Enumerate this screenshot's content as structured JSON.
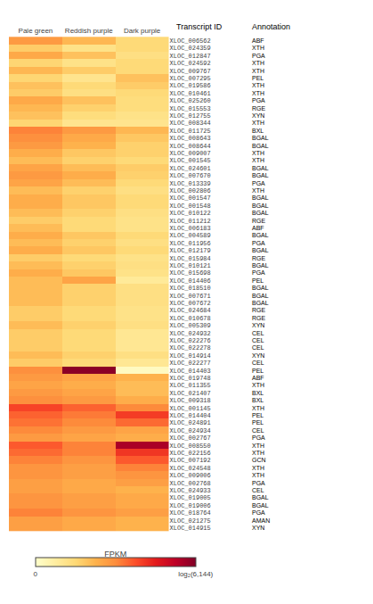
{
  "chart_data": {
    "type": "heatmap",
    "x": [
      "Pale green",
      "Reddish purple",
      "Dark purple"
    ],
    "y": [
      "XLOC_006562",
      "XLOC_024359",
      "XLOC_012847",
      "XLOC_024592",
      "XLOC_009767",
      "XLOC_007295",
      "XLOC_019586",
      "XLOC_010461",
      "XLOC_025260",
      "XLOC_015553",
      "XLOC_012755",
      "XLOC_008344",
      "XLOC_011725",
      "XLOC_008643",
      "XLOC_008644",
      "XLOC_009007",
      "XLOC_001545",
      "XLOC_024601",
      "XLOC_007670",
      "XLOC_013339",
      "XLOC_002806",
      "XLOC_001547",
      "XLOC_001548",
      "XLOC_010122",
      "XLOC_011212",
      "XLOC_006183",
      "XLOC_004589",
      "XLOC_011956",
      "XLOC_012179",
      "XLOC_015984",
      "XLOC_010121",
      "XLOC_015698",
      "XLOC_014406",
      "XLOC_018510",
      "XLOC_007671",
      "XLOC_007672",
      "XLOC_024684",
      "XLOC_010678",
      "XLOC_005309",
      "XLOC_024932",
      "XLOC_022276",
      "XLOC_022278",
      "XLOC_014914",
      "XLOC_022277",
      "XLOC_014403",
      "XLOC_019748",
      "XLOC_011355",
      "XLOC_021407",
      "XLOC_009318",
      "XLOC_001145",
      "XLOC_014404",
      "XLOC_024891",
      "XLOC_024934",
      "XLOC_002767",
      "XLOC_008550",
      "XLOC_022156",
      "XLOC_007192",
      "XLOC_024548",
      "XLOC_009006",
      "XLOC_002768",
      "XLOC_024933",
      "XLOC_019005",
      "XLOC_019006",
      "XLOC_018764",
      "XLOC_021275",
      "XLOC_014915"
    ],
    "annotations": [
      "ABF",
      "XTH",
      "PGA",
      "XTH",
      "XTH",
      "PEL",
      "XTH",
      "XTH",
      "PGA",
      "RGE",
      "XYN",
      "XTH",
      "BXL",
      "BGAL",
      "BGAL",
      "XTH",
      "XTH",
      "BGAL",
      "BGAL",
      "PGA",
      "XTH",
      "BGAL",
      "BGAL",
      "BGAL",
      "RGE",
      "ABF",
      "BGAL",
      "PGA",
      "BGAL",
      "RGE",
      "BGAL",
      "PGA",
      "PEL",
      "BGAL",
      "BGAL",
      "BGAL",
      "RGE",
      "RGE",
      "XYN",
      "CEL",
      "CEL",
      "CEL",
      "XYN",
      "CEL",
      "PEL",
      "ABF",
      "XTH",
      "BXL",
      "BXL",
      "XTH",
      "PEL",
      "PEL",
      "CEL",
      "PGA",
      "XTH",
      "XTH",
      "GCN",
      "XTH",
      "XTH",
      "PGA",
      "CEL",
      "BGAL",
      "BGAL",
      "PGA",
      "AMAN",
      "XYN"
    ],
    "ylabel": "Transcript ID",
    "annotation_header": "Annotation",
    "values": [
      [
        2.8,
        2.2,
        1.5
      ],
      [
        1.8,
        1.2,
        1.5
      ],
      [
        2.5,
        2.0,
        1.3
      ],
      [
        1.6,
        1.2,
        1.5
      ],
      [
        2.2,
        1.8,
        1.5
      ],
      [
        1.6,
        1.1,
        2.0
      ],
      [
        2.0,
        1.5,
        1.8
      ],
      [
        1.8,
        1.3,
        1.5
      ],
      [
        2.5,
        2.0,
        1.4
      ],
      [
        2.2,
        1.7,
        1.4
      ],
      [
        2.0,
        1.4,
        1.2
      ],
      [
        1.6,
        1.1,
        1.1
      ],
      [
        3.2,
        2.8,
        2.2
      ],
      [
        3.0,
        2.5,
        1.9
      ],
      [
        2.8,
        2.3,
        1.7
      ],
      [
        2.4,
        1.9,
        1.7
      ],
      [
        2.1,
        1.7,
        1.5
      ],
      [
        2.6,
        2.1,
        1.8
      ],
      [
        2.8,
        2.4,
        1.7
      ],
      [
        2.6,
        2.1,
        1.5
      ],
      [
        2.1,
        1.7,
        1.3
      ],
      [
        2.4,
        1.9,
        1.5
      ],
      [
        2.4,
        1.9,
        1.5
      ],
      [
        2.1,
        1.7,
        1.3
      ],
      [
        1.8,
        1.5,
        1.2
      ],
      [
        2.1,
        1.5,
        1.2
      ],
      [
        2.4,
        1.9,
        1.5
      ],
      [
        2.1,
        1.7,
        1.3
      ],
      [
        2.4,
        1.9,
        1.5
      ],
      [
        1.8,
        1.5,
        1.2
      ],
      [
        2.1,
        1.7,
        1.3
      ],
      [
        2.4,
        1.9,
        1.2
      ],
      [
        2.1,
        2.6,
        0.9
      ],
      [
        2.1,
        1.7,
        1.3
      ],
      [
        2.1,
        1.7,
        1.3
      ],
      [
        2.1,
        1.7,
        1.3
      ],
      [
        1.8,
        1.5,
        1.2
      ],
      [
        1.8,
        1.5,
        1.2
      ],
      [
        2.1,
        1.7,
        1.3
      ],
      [
        1.8,
        1.5,
        1.0
      ],
      [
        1.8,
        1.5,
        1.0
      ],
      [
        1.8,
        1.5,
        1.0
      ],
      [
        2.1,
        1.7,
        1.3
      ],
      [
        1.8,
        1.5,
        1.0
      ],
      [
        3.0,
        6.0,
        0.2
      ],
      [
        2.8,
        2.6,
        2.3
      ],
      [
        2.6,
        2.4,
        2.1
      ],
      [
        2.8,
        2.6,
        2.1
      ],
      [
        3.0,
        2.8,
        2.4
      ],
      [
        4.0,
        3.6,
        3.1
      ],
      [
        3.6,
        3.3,
        4.1
      ],
      [
        3.4,
        3.1,
        3.5
      ],
      [
        3.1,
        2.8,
        2.6
      ],
      [
        2.8,
        2.6,
        2.4
      ],
      [
        3.7,
        3.2,
        5.6
      ],
      [
        3.5,
        3.2,
        4.2
      ],
      [
        3.2,
        2.9,
        3.7
      ],
      [
        2.9,
        2.7,
        3.2
      ],
      [
        2.9,
        2.7,
        2.9
      ],
      [
        2.7,
        2.5,
        2.7
      ],
      [
        2.7,
        2.5,
        2.3
      ],
      [
        2.9,
        2.7,
        2.5
      ],
      [
        2.9,
        2.7,
        2.5
      ],
      [
        3.2,
        2.9,
        2.7
      ],
      [
        2.7,
        2.5,
        2.3
      ],
      [
        2.7,
        2.5,
        2.3
      ]
    ],
    "colorbar": {
      "label": "FPKM",
      "range": [
        0,
        6.144
      ],
      "ticks": [
        0,
        {
          "value": 6.144,
          "label": "log₂(6,144)"
        }
      ]
    },
    "grid": false
  }
}
